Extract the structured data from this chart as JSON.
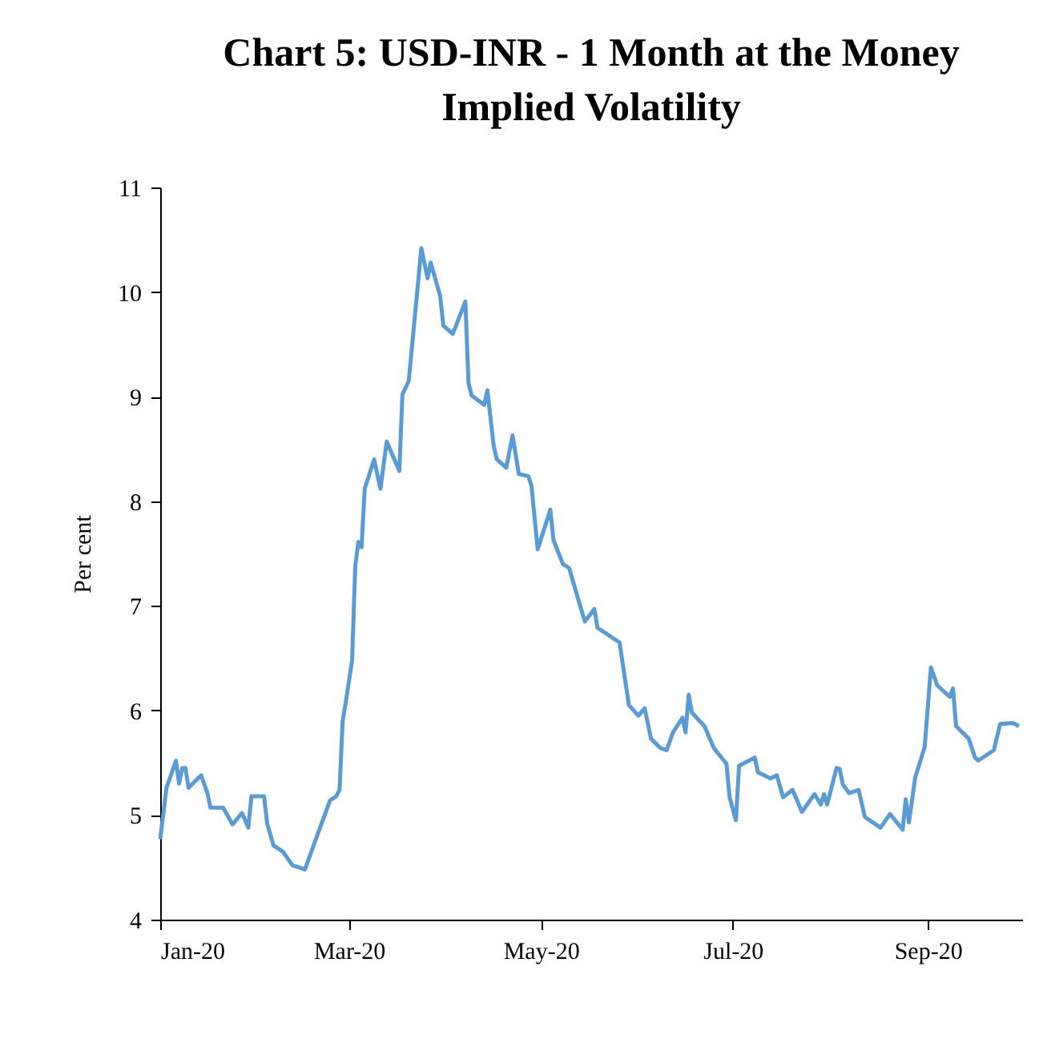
{
  "chart_data": {
    "type": "line",
    "title": "Chart 5: USD-INR - 1 Month at the Money Implied Volatility",
    "ylabel": "Per cent",
    "x": [
      "2020-01-01",
      "2020-01-03",
      "2020-01-06",
      "2020-01-07",
      "2020-01-08",
      "2020-01-09",
      "2020-01-10",
      "2020-01-14",
      "2020-01-16",
      "2020-01-17",
      "2020-01-21",
      "2020-01-24",
      "2020-01-27",
      "2020-01-29",
      "2020-01-30",
      "2020-02-03",
      "2020-02-04",
      "2020-02-06",
      "2020-02-09",
      "2020-02-12",
      "2020-02-16",
      "2020-02-19",
      "2020-02-24",
      "2020-02-26",
      "2020-02-27",
      "2020-02-28",
      "2020-02-29",
      "2020-03-02",
      "2020-03-03",
      "2020-03-04",
      "2020-03-05",
      "2020-03-06",
      "2020-03-09",
      "2020-03-11",
      "2020-03-13",
      "2020-03-17",
      "2020-03-18",
      "2020-03-20",
      "2020-03-24",
      "2020-03-26",
      "2020-03-27",
      "2020-03-30",
      "2020-03-31",
      "2020-04-03",
      "2020-04-07",
      "2020-04-08",
      "2020-04-09",
      "2020-04-13",
      "2020-04-14",
      "2020-04-16",
      "2020-04-17",
      "2020-04-20",
      "2020-04-22",
      "2020-04-24",
      "2020-04-27",
      "2020-04-28",
      "2020-04-30",
      "2020-05-04",
      "2020-05-05",
      "2020-05-08",
      "2020-05-10",
      "2020-05-13",
      "2020-05-15",
      "2020-05-18",
      "2020-05-19",
      "2020-05-22",
      "2020-05-26",
      "2020-05-29",
      "2020-06-01",
      "2020-06-03",
      "2020-06-05",
      "2020-06-08",
      "2020-06-10",
      "2020-06-12",
      "2020-06-15",
      "2020-06-16",
      "2020-06-17",
      "2020-06-18",
      "2020-06-22",
      "2020-06-25",
      "2020-06-29",
      "2020-06-30",
      "2020-07-02",
      "2020-07-03",
      "2020-07-08",
      "2020-07-09",
      "2020-07-13",
      "2020-07-15",
      "2020-07-17",
      "2020-07-20",
      "2020-07-23",
      "2020-07-27",
      "2020-07-29",
      "2020-07-30",
      "2020-07-31",
      "2020-08-03",
      "2020-08-04",
      "2020-08-05",
      "2020-08-07",
      "2020-08-10",
      "2020-08-12",
      "2020-08-17",
      "2020-08-20",
      "2020-08-24",
      "2020-08-25",
      "2020-08-26",
      "2020-08-28",
      "2020-08-31",
      "2020-09-02",
      "2020-09-04",
      "2020-09-08",
      "2020-09-09",
      "2020-09-10",
      "2020-09-14",
      "2020-09-16",
      "2020-09-17",
      "2020-09-22",
      "2020-09-24",
      "2020-09-28",
      "2020-09-30"
    ],
    "series": [
      {
        "color": "#5b9bd5",
        "values": [
          4.77,
          5.26,
          5.52,
          5.3,
          5.45,
          5.45,
          5.26,
          5.38,
          5.21,
          5.07,
          5.07,
          4.91,
          5.02,
          4.88,
          5.18,
          5.18,
          4.92,
          4.71,
          4.65,
          4.52,
          4.48,
          4.73,
          5.14,
          5.18,
          5.24,
          5.9,
          6.08,
          6.48,
          7.38,
          7.61,
          7.56,
          8.12,
          8.4,
          8.12,
          8.57,
          8.29,
          9.02,
          9.15,
          10.42,
          10.13,
          10.28,
          9.96,
          9.68,
          9.6,
          9.91,
          9.13,
          9.01,
          8.92,
          9.06,
          8.53,
          8.4,
          8.32,
          8.63,
          8.26,
          8.24,
          8.15,
          7.54,
          7.92,
          7.63,
          7.4,
          7.36,
          7.05,
          6.85,
          6.97,
          6.79,
          6.73,
          6.65,
          6.05,
          5.95,
          6.02,
          5.73,
          5.64,
          5.62,
          5.79,
          5.93,
          5.79,
          6.15,
          5.98,
          5.85,
          5.64,
          5.49,
          5.17,
          4.95,
          5.47,
          5.55,
          5.41,
          5.35,
          5.38,
          5.17,
          5.24,
          5.03,
          5.2,
          5.1,
          5.2,
          5.1,
          5.45,
          5.44,
          5.29,
          5.21,
          5.24,
          4.98,
          4.88,
          5.01,
          4.86,
          5.15,
          4.93,
          5.36,
          5.65,
          6.41,
          6.24,
          6.13,
          6.21,
          5.85,
          5.73,
          5.55,
          5.52,
          5.62,
          5.87,
          5.88,
          5.85
        ]
      }
    ],
    "xlim": [
      "2020-01-01",
      "2020-10-01"
    ],
    "xticks": [
      {
        "value": "2020-01-01",
        "label": "Jan-20"
      },
      {
        "value": "2020-03-01",
        "label": "Mar-20"
      },
      {
        "value": "2020-05-01",
        "label": "May-20"
      },
      {
        "value": "2020-07-01",
        "label": "Jul-20"
      },
      {
        "value": "2020-09-01",
        "label": "Sep-20"
      }
    ],
    "ylim": [
      4,
      11
    ],
    "yticks": [
      4,
      5,
      6,
      7,
      8,
      9,
      10,
      11
    ],
    "grid": false,
    "legend": false,
    "marker": "none",
    "line_style": "solid"
  }
}
